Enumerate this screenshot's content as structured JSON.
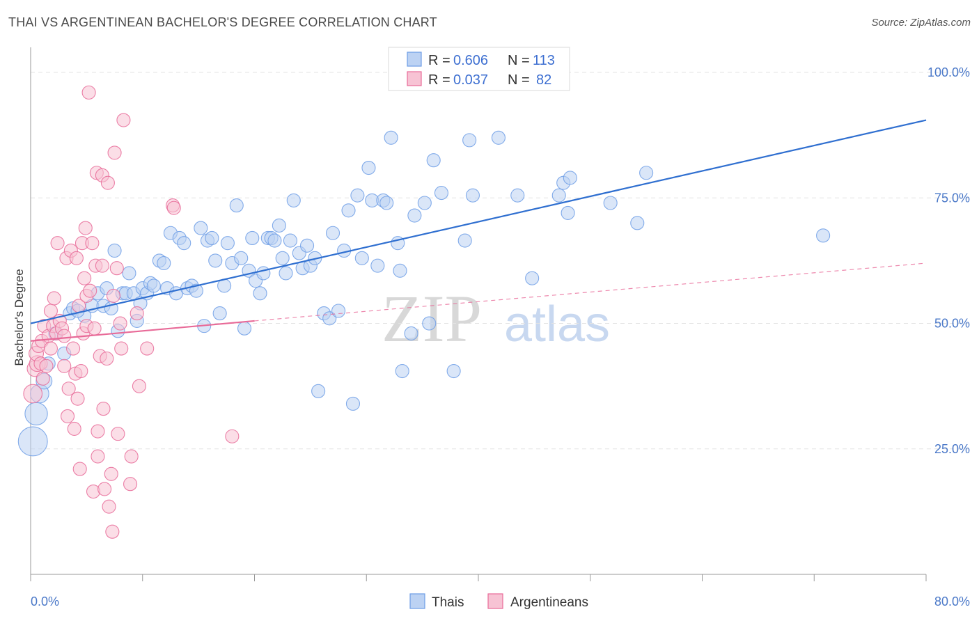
{
  "chart_data": {
    "type": "scatter",
    "title": "THAI VS ARGENTINEAN BACHELOR'S DEGREE CORRELATION CHART",
    "source": "Source: ZipAtlas.com",
    "xlabel": "",
    "ylabel": "Bachelor's Degree",
    "xlim": [
      0,
      80
    ],
    "ylim": [
      0,
      105
    ],
    "x_tick_labels": [
      "0.0%",
      "80.0%"
    ],
    "y_ticks": [
      25,
      50,
      75,
      100
    ],
    "y_tick_labels": [
      "25.0%",
      "50.0%",
      "75.0%",
      "100.0%"
    ],
    "grid": true,
    "watermark": {
      "zip": "ZIP",
      "atlas": "atlas"
    },
    "legend_stats": [
      {
        "r_label": "R =",
        "r_value": "0.606",
        "n_label": "N =",
        "n_value": "113"
      },
      {
        "r_label": "R =",
        "r_value": "0.037",
        "n_label": "N =",
        "n_value": "82"
      }
    ],
    "series": [
      {
        "name": "Thais",
        "color": "#6d9de6",
        "fill": "#bcd2f3",
        "trendline": {
          "x": [
            0,
            80
          ],
          "y": [
            50.0,
            90.5
          ],
          "style": "solid"
        },
        "points": [
          [
            0.2,
            26.5,
            2.2
          ],
          [
            0.5,
            32,
            1.7
          ],
          [
            0.8,
            36,
            1.4
          ],
          [
            1.2,
            38.5,
            1.2
          ],
          [
            1.6,
            42,
            1.0
          ],
          [
            3.0,
            44,
            1.0
          ],
          [
            2.2,
            48,
            1.0
          ],
          [
            3.5,
            52,
            1.0
          ],
          [
            4.8,
            51.5,
            1.0
          ],
          [
            5.5,
            53.5,
            1.0
          ],
          [
            3.8,
            53,
            1.0
          ],
          [
            4.2,
            52.5,
            1.0
          ],
          [
            6.0,
            56,
            1.0
          ],
          [
            6.5,
            53.5,
            1.0
          ],
          [
            6.8,
            57,
            1.0
          ],
          [
            7.2,
            53,
            1.0
          ],
          [
            7.5,
            64.5,
            1.0
          ],
          [
            7.8,
            48.5,
            1.0
          ],
          [
            8.2,
            56,
            1.0
          ],
          [
            8.5,
            56,
            1.0
          ],
          [
            8.8,
            60,
            1.0
          ],
          [
            9.2,
            56,
            1.0
          ],
          [
            9.5,
            50.5,
            1.0
          ],
          [
            9.8,
            54,
            1.0
          ],
          [
            10.0,
            57,
            1.0
          ],
          [
            10.4,
            56,
            1.0
          ],
          [
            10.7,
            58,
            1.0
          ],
          [
            11.0,
            57.5,
            1.0
          ],
          [
            11.5,
            62.5,
            1.0
          ],
          [
            11.9,
            62,
            1.0
          ],
          [
            12.2,
            57,
            1.0
          ],
          [
            12.5,
            68,
            1.0
          ],
          [
            13.0,
            56,
            1.0
          ],
          [
            13.3,
            67,
            1.0
          ],
          [
            13.7,
            66,
            1.0
          ],
          [
            14.0,
            57,
            1.0
          ],
          [
            14.4,
            57.5,
            1.0
          ],
          [
            14.8,
            56.5,
            1.0
          ],
          [
            15.2,
            69,
            1.0
          ],
          [
            15.5,
            49.5,
            1.0
          ],
          [
            15.8,
            66.5,
            1.0
          ],
          [
            16.2,
            67,
            1.0
          ],
          [
            16.5,
            62.5,
            1.0
          ],
          [
            16.9,
            52,
            1.0
          ],
          [
            17.3,
            57.5,
            1.0
          ],
          [
            17.6,
            66,
            1.0
          ],
          [
            18.0,
            62,
            1.0
          ],
          [
            18.4,
            73.5,
            1.0
          ],
          [
            18.8,
            63,
            1.0
          ],
          [
            19.1,
            49,
            1.0
          ],
          [
            19.5,
            60.5,
            1.0
          ],
          [
            19.8,
            67,
            1.0
          ],
          [
            20.1,
            58.5,
            1.0
          ],
          [
            20.5,
            56,
            1.0
          ],
          [
            20.8,
            60,
            1.0
          ],
          [
            21.2,
            67,
            1.0
          ],
          [
            21.5,
            67,
            1.0
          ],
          [
            21.8,
            66.5,
            1.0
          ],
          [
            22.2,
            69.5,
            1.0
          ],
          [
            22.5,
            63,
            1.0
          ],
          [
            22.8,
            60,
            1.0
          ],
          [
            23.2,
            66.5,
            1.0
          ],
          [
            23.5,
            74.5,
            1.0
          ],
          [
            24.0,
            64,
            1.0
          ],
          [
            24.3,
            61,
            1.0
          ],
          [
            24.7,
            65.5,
            1.0
          ],
          [
            25.0,
            61.5,
            1.0
          ],
          [
            25.4,
            63,
            1.0
          ],
          [
            25.7,
            36.5,
            1.0
          ],
          [
            26.2,
            52,
            1.0
          ],
          [
            26.7,
            51,
            1.0
          ],
          [
            27.0,
            68,
            1.0
          ],
          [
            27.5,
            52.5,
            1.0
          ],
          [
            28.0,
            64.5,
            1.0
          ],
          [
            28.4,
            72.5,
            1.0
          ],
          [
            28.8,
            34,
            1.0
          ],
          [
            29.2,
            75.5,
            1.0
          ],
          [
            29.6,
            63,
            1.0
          ],
          [
            30.2,
            81,
            1.0
          ],
          [
            30.5,
            74.5,
            1.0
          ],
          [
            31.0,
            61.5,
            1.0
          ],
          [
            31.5,
            74.5,
            1.0
          ],
          [
            31.8,
            74,
            1.0
          ],
          [
            32.2,
            87,
            1.0
          ],
          [
            32.8,
            66,
            1.0
          ],
          [
            33.0,
            60.5,
            1.0
          ],
          [
            33.2,
            40.5,
            1.0
          ],
          [
            34.0,
            48,
            1.0
          ],
          [
            34.3,
            71.5,
            1.0
          ],
          [
            35.2,
            74,
            1.0
          ],
          [
            35.6,
            50,
            1.0
          ],
          [
            36.0,
            82.5,
            1.0
          ],
          [
            36.7,
            76,
            1.0
          ],
          [
            37.8,
            40.5,
            1.0
          ],
          [
            38.8,
            66.5,
            1.0
          ],
          [
            39.2,
            86.5,
            1.0
          ],
          [
            39.5,
            75.5,
            1.0
          ],
          [
            41.8,
            87,
            1.0
          ],
          [
            43.5,
            75.5,
            1.0
          ],
          [
            44.8,
            59,
            1.0
          ],
          [
            47.2,
            75.5,
            1.0
          ],
          [
            47.6,
            78,
            1.0
          ],
          [
            48.0,
            72,
            1.0
          ],
          [
            48.2,
            79,
            1.0
          ],
          [
            51.8,
            74,
            1.0
          ],
          [
            54.2,
            70,
            1.0
          ],
          [
            55.0,
            80,
            1.0
          ],
          [
            70.8,
            67.5,
            1.0
          ]
        ]
      },
      {
        "name": "Argentineans",
        "color": "#e86a98",
        "fill": "#f7c3d4",
        "trendline": {
          "x": [
            0,
            20
          ],
          "y": [
            46.5,
            50.5
          ],
          "style": "solid",
          "extended_x": [
            20,
            80
          ],
          "extended_y": [
            50.5,
            62
          ],
          "extended_style": "dashed"
        },
        "points": [
          [
            0.2,
            36,
            1.4
          ],
          [
            0.4,
            41,
            1.2
          ],
          [
            0.6,
            42,
            1.2
          ],
          [
            0.5,
            44,
            1.1
          ],
          [
            0.7,
            45.5,
            1.0
          ],
          [
            0.9,
            42,
            1.0
          ],
          [
            1.1,
            39,
            1.0
          ],
          [
            1.0,
            46.5,
            1.0
          ],
          [
            1.2,
            49.5,
            1.0
          ],
          [
            1.4,
            41.5,
            1.0
          ],
          [
            1.6,
            47.5,
            1.0
          ],
          [
            1.8,
            45,
            1.0
          ],
          [
            2.0,
            49.5,
            1.0
          ],
          [
            1.8,
            52.5,
            1.0
          ],
          [
            2.1,
            55,
            1.0
          ],
          [
            2.3,
            48,
            1.0
          ],
          [
            2.4,
            66,
            1.0
          ],
          [
            2.6,
            50.5,
            1.0
          ],
          [
            2.8,
            49,
            1.0
          ],
          [
            3.0,
            41.5,
            1.0
          ],
          [
            3.0,
            47.5,
            1.0
          ],
          [
            3.2,
            63,
            1.0
          ],
          [
            3.3,
            31.5,
            1.0
          ],
          [
            3.4,
            37,
            1.0
          ],
          [
            3.6,
            64.5,
            1.0
          ],
          [
            3.8,
            45,
            1.0
          ],
          [
            3.9,
            29,
            1.0
          ],
          [
            4.0,
            40,
            1.0
          ],
          [
            4.1,
            63,
            1.0
          ],
          [
            4.2,
            35,
            1.0
          ],
          [
            4.3,
            53.5,
            1.0
          ],
          [
            4.4,
            21,
            1.0
          ],
          [
            4.5,
            40.5,
            1.0
          ],
          [
            4.6,
            66,
            1.0
          ],
          [
            4.7,
            48,
            1.0
          ],
          [
            4.8,
            59,
            1.0
          ],
          [
            4.9,
            69,
            1.0
          ],
          [
            5.0,
            55.5,
            1.0
          ],
          [
            5.0,
            49.5,
            1.0
          ],
          [
            5.2,
            96,
            1.0
          ],
          [
            5.3,
            56.5,
            1.0
          ],
          [
            5.5,
            66,
            1.0
          ],
          [
            5.6,
            16.5,
            1.0
          ],
          [
            5.7,
            49,
            1.0
          ],
          [
            5.8,
            61.5,
            1.0
          ],
          [
            5.9,
            80,
            1.0
          ],
          [
            6.0,
            28.5,
            1.0
          ],
          [
            6.0,
            23.5,
            1.0
          ],
          [
            6.2,
            43.5,
            1.0
          ],
          [
            6.4,
            79.5,
            1.0
          ],
          [
            6.4,
            61.5,
            1.0
          ],
          [
            6.5,
            33,
            1.0
          ],
          [
            6.6,
            17,
            1.0
          ],
          [
            6.8,
            43,
            1.0
          ],
          [
            6.9,
            78,
            1.0
          ],
          [
            7.0,
            13.5,
            1.0
          ],
          [
            7.2,
            20,
            1.0
          ],
          [
            7.3,
            8.5,
            1.0
          ],
          [
            7.4,
            55.5,
            1.0
          ],
          [
            7.5,
            84,
            1.0
          ],
          [
            7.7,
            61,
            1.0
          ],
          [
            7.8,
            28,
            1.0
          ],
          [
            8.0,
            50,
            1.0
          ],
          [
            8.1,
            45,
            1.0
          ],
          [
            8.3,
            90.5,
            1.0
          ],
          [
            8.9,
            18,
            1.0
          ],
          [
            9.0,
            23.5,
            1.0
          ],
          [
            9.5,
            52,
            1.0
          ],
          [
            9.7,
            37.5,
            1.0
          ],
          [
            10.4,
            45,
            1.0
          ],
          [
            12.7,
            73.5,
            1.0
          ],
          [
            12.8,
            73,
            1.0
          ],
          [
            18.0,
            27.5,
            1.0
          ]
        ]
      }
    ]
  },
  "bottom_legend": [
    "Thais",
    "Argentineans"
  ]
}
